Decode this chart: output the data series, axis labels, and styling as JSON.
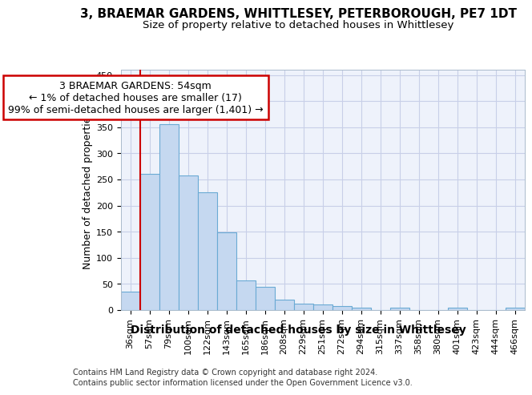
{
  "title_line1": "3, BRAEMAR GARDENS, WHITTLESEY, PETERBOROUGH, PE7 1DT",
  "title_line2": "Size of property relative to detached houses in Whittlesey",
  "xlabel": "Distribution of detached houses by size in Whittlesey",
  "ylabel": "Number of detached properties",
  "bar_labels": [
    "36sqm",
    "57sqm",
    "79sqm",
    "100sqm",
    "122sqm",
    "143sqm",
    "165sqm",
    "186sqm",
    "208sqm",
    "229sqm",
    "251sqm",
    "272sqm",
    "294sqm",
    "315sqm",
    "337sqm",
    "358sqm",
    "380sqm",
    "401sqm",
    "423sqm",
    "444sqm",
    "466sqm"
  ],
  "bar_values": [
    35,
    261,
    356,
    258,
    225,
    148,
    57,
    44,
    20,
    12,
    10,
    7,
    5,
    0,
    5,
    0,
    0,
    4,
    0,
    0,
    4
  ],
  "bar_color": "#c5d8f0",
  "bar_edge_color": "#6aaad4",
  "red_line_x": 0.5,
  "red_line_color": "#cc0000",
  "annotation_text": "3 BRAEMAR GARDENS: 54sqm\n← 1% of detached houses are smaller (17)\n99% of semi-detached houses are larger (1,401) →",
  "annotation_box_facecolor": "#ffffff",
  "annotation_box_edgecolor": "#cc0000",
  "ylim": [
    0,
    460
  ],
  "yticks": [
    0,
    50,
    100,
    150,
    200,
    250,
    300,
    350,
    400,
    450
  ],
  "footer_line1": "Contains HM Land Registry data © Crown copyright and database right 2024.",
  "footer_line2": "Contains public sector information licensed under the Open Government Licence v3.0.",
  "bg_color": "#ffffff",
  "plot_bg_color": "#eef2fb",
  "grid_color": "#c8cfe8",
  "title_fontsize": 11,
  "subtitle_fontsize": 9.5,
  "ylabel_fontsize": 9,
  "xlabel_fontsize": 10,
  "tick_fontsize": 8,
  "annotation_fontsize": 9,
  "footer_fontsize": 7
}
